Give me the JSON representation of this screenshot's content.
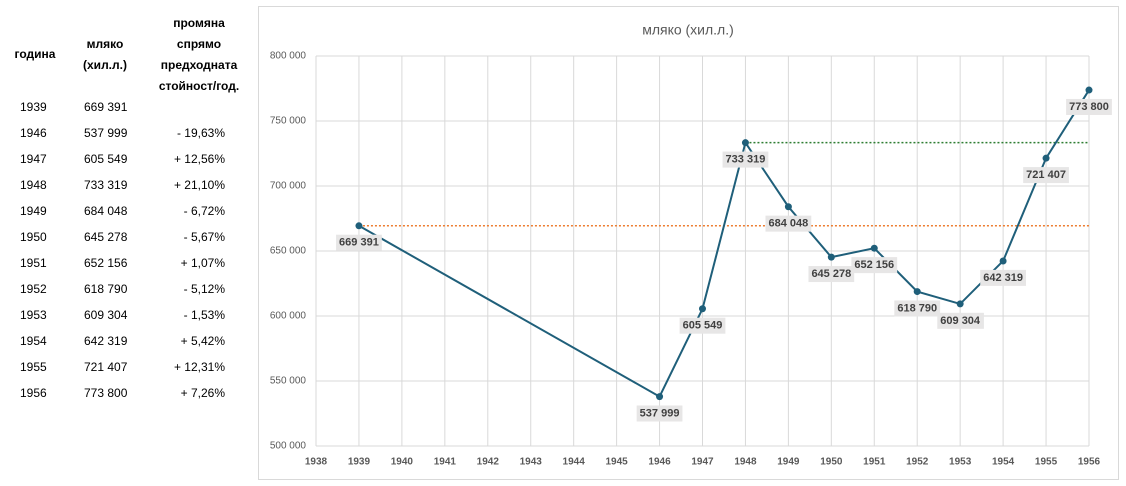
{
  "table": {
    "headers": [
      "година",
      "мляко (хил.л.)",
      "промяна спрямо предходната стойност/год."
    ],
    "rows": [
      [
        "1939",
        "669 391",
        ""
      ],
      [
        "1946",
        "537 999",
        "- 19,63%"
      ],
      [
        "1947",
        "605 549",
        "+ 12,56%"
      ],
      [
        "1948",
        "733 319",
        "+ 21,10%"
      ],
      [
        "1949",
        "684 048",
        "- 6,72%"
      ],
      [
        "1950",
        "645 278",
        "- 5,67%"
      ],
      [
        "1951",
        "652 156",
        "+ 1,07%"
      ],
      [
        "1952",
        "618 790",
        "- 5,12%"
      ],
      [
        "1953",
        "609 304",
        "- 1,53%"
      ],
      [
        "1954",
        "642 319",
        "+ 5,42%"
      ],
      [
        "1955",
        "721 407",
        "+ 12,31%"
      ],
      [
        "1956",
        "773 800",
        "+ 7,26%"
      ]
    ]
  },
  "chart_data": {
    "type": "line",
    "title": "мляко (хил.л.)",
    "x": [
      1939,
      1946,
      1947,
      1948,
      1949,
      1950,
      1951,
      1952,
      1953,
      1954,
      1955,
      1956
    ],
    "series": [
      {
        "color": "#1f5f7a",
        "values": [
          669391,
          537999,
          605549,
          733319,
          684048,
          645278,
          652156,
          618790,
          609304,
          642319,
          721407,
          773800
        ],
        "value_labels": [
          "669 391",
          "537 999",
          "605 549",
          "733 319",
          "684 048",
          "645 278",
          "652 156",
          "618 790",
          "609 304",
          "642 319",
          "721 407",
          "773 800"
        ]
      }
    ],
    "reference_lines": [
      {
        "value": 669391,
        "x": [
          1939,
          1956
        ],
        "color": "#ed7d31"
      },
      {
        "value": 733319,
        "x": [
          1948,
          1956
        ],
        "color": "#2e7d32"
      }
    ],
    "xlim": [
      1938,
      1956
    ],
    "xticks": [
      1938,
      1939,
      1940,
      1941,
      1942,
      1943,
      1944,
      1945,
      1946,
      1947,
      1948,
      1949,
      1950,
      1951,
      1952,
      1953,
      1954,
      1955,
      1956
    ],
    "ylim": [
      500000,
      800000
    ],
    "yticks": [
      {
        "value": 500000,
        "label": "500 000"
      },
      {
        "value": 550000,
        "label": "550 000"
      },
      {
        "value": 600000,
        "label": "600 000"
      },
      {
        "value": 650000,
        "label": "650 000"
      },
      {
        "value": 700000,
        "label": "700 000"
      },
      {
        "value": 750000,
        "label": "750 000"
      },
      {
        "value": 800000,
        "label": "800 000"
      }
    ],
    "grid": true
  }
}
